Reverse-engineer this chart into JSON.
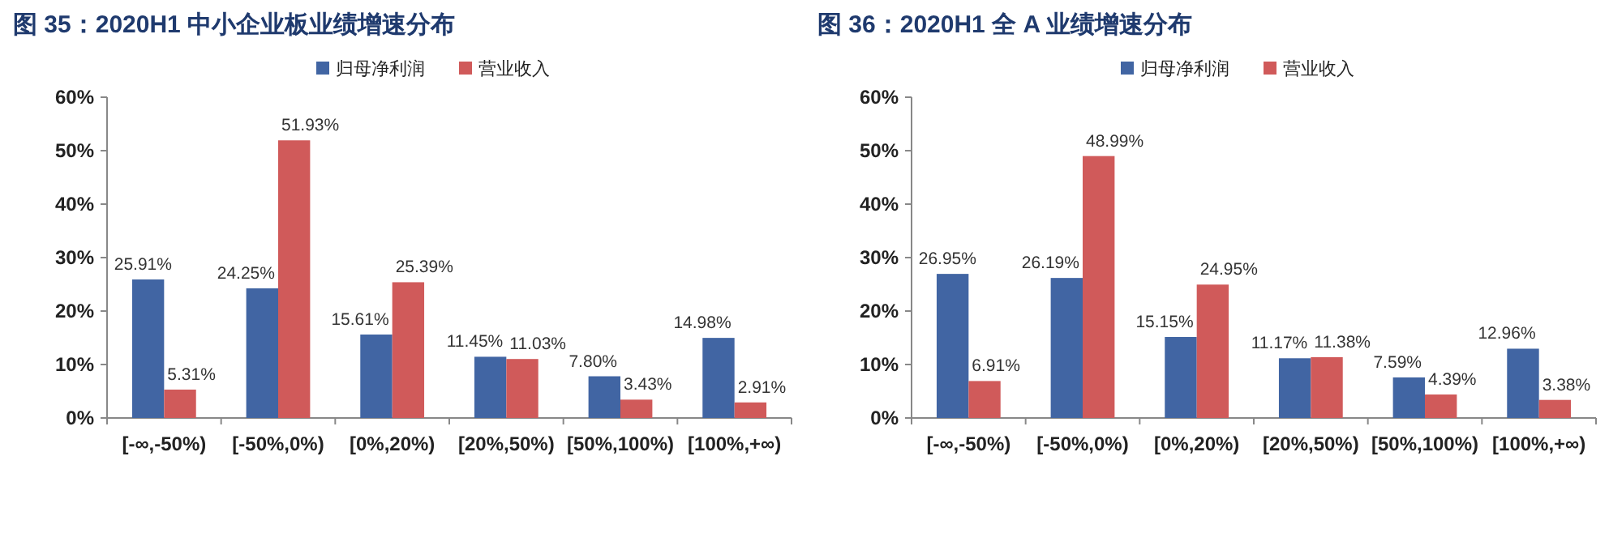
{
  "chart_data": [
    {
      "type": "bar",
      "title": "图 35：2020H1 中小企业板业绩增速分布",
      "categories": [
        "[-∞,-50%)",
        "[-50%,0%)",
        "[0%,20%)",
        "[20%,50%)",
        "[50%,100%)",
        "[100%,+∞)"
      ],
      "series": [
        {
          "name": "归母净利润",
          "color": "#4165a3",
          "values": [
            25.91,
            24.25,
            15.61,
            11.45,
            7.8,
            14.98
          ],
          "value_labels": [
            "25.91%",
            "24.25%",
            "15.61%",
            "11.45%",
            "7.80%",
            "14.98%"
          ]
        },
        {
          "name": "营业收入",
          "color": "#d05a5a",
          "values": [
            5.31,
            51.93,
            25.39,
            11.03,
            3.43,
            2.91
          ],
          "value_labels": [
            "5.31%",
            "51.93%",
            "25.39%",
            "11.03%",
            "3.43%",
            "2.91%"
          ]
        }
      ],
      "ylim": [
        0,
        60
      ],
      "yticks": [
        {
          "value": 0,
          "label": "0%"
        },
        {
          "value": 10,
          "label": "10%"
        },
        {
          "value": 20,
          "label": "20%"
        },
        {
          "value": 30,
          "label": "30%"
        },
        {
          "value": 40,
          "label": "40%"
        },
        {
          "value": 50,
          "label": "50%"
        },
        {
          "value": 60,
          "label": "60%"
        }
      ],
      "legend": "top"
    },
    {
      "type": "bar",
      "title": "图 36：2020H1 全 A 业绩增速分布",
      "categories": [
        "[-∞,-50%)",
        "[-50%,0%)",
        "[0%,20%)",
        "[20%,50%)",
        "[50%,100%)",
        "[100%,+∞)"
      ],
      "series": [
        {
          "name": "归母净利润",
          "color": "#4165a3",
          "values": [
            26.95,
            26.19,
            15.15,
            11.17,
            7.59,
            12.96
          ],
          "value_labels": [
            "26.95%",
            "26.19%",
            "15.15%",
            "11.17%",
            "7.59%",
            "12.96%"
          ]
        },
        {
          "name": "营业收入",
          "color": "#d05a5a",
          "values": [
            6.91,
            48.99,
            24.95,
            11.38,
            4.39,
            3.38
          ],
          "value_labels": [
            "6.91%",
            "48.99%",
            "24.95%",
            "11.38%",
            "4.39%",
            "3.38%"
          ]
        }
      ],
      "ylim": [
        0,
        60
      ],
      "yticks": [
        {
          "value": 0,
          "label": "0%"
        },
        {
          "value": 10,
          "label": "10%"
        },
        {
          "value": 20,
          "label": "20%"
        },
        {
          "value": 30,
          "label": "30%"
        },
        {
          "value": 40,
          "label": "40%"
        },
        {
          "value": 50,
          "label": "50%"
        },
        {
          "value": 60,
          "label": "60%"
        }
      ],
      "legend": "top"
    }
  ]
}
